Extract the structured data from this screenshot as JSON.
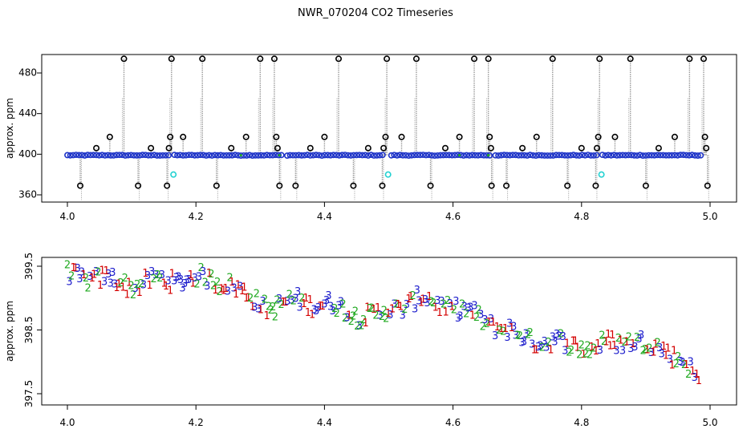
{
  "title": "NWR_070204  CO2 Timeseries",
  "colors": {
    "background": "#ffffff",
    "frame": "#000000",
    "spike_line": "#9a9a9a",
    "baseline_point": "#1f35c8",
    "outlier_point": "#000000",
    "cyan_point": "#21d1d1",
    "series_1": "#d40000",
    "series_2": "#22aa22",
    "series_3": "#1c1ccc"
  },
  "chart_data": [
    {
      "type": "scatter",
      "title": "",
      "xlabel": "",
      "ylabel": "approx. ppm",
      "xlim": [
        3.99,
        5.01
      ],
      "ylim": [
        355,
        498
      ],
      "xticks": [
        "4.0",
        "4.2",
        "4.4",
        "4.6",
        "4.8",
        "5.0"
      ],
      "yticks": [
        "360",
        "400",
        "440",
        "480"
      ],
      "baseline_ppm": 399,
      "baseline_x_range": [
        4.0,
        4.99
      ],
      "baseline_gaps": [
        4.163,
        4.337,
        4.497,
        4.662,
        4.828
      ],
      "outliers": {
        "x": [
          4.02,
          4.045,
          4.066,
          4.088,
          4.11,
          4.13,
          4.155,
          4.158,
          4.16,
          4.162,
          4.18,
          4.21,
          4.232,
          4.255,
          4.278,
          4.3,
          4.322,
          4.325,
          4.327,
          4.33,
          4.355,
          4.378,
          4.4,
          4.422,
          4.445,
          4.468,
          4.49,
          4.492,
          4.495,
          4.497,
          4.52,
          4.543,
          4.565,
          4.588,
          4.61,
          4.633,
          4.655,
          4.657,
          4.659,
          4.66,
          4.683,
          4.708,
          4.73,
          4.755,
          4.778,
          4.8,
          4.822,
          4.824,
          4.826,
          4.828,
          4.852,
          4.876,
          4.9,
          4.92,
          4.945,
          4.968,
          4.99,
          4.992,
          4.994,
          4.996
        ],
        "y": [
          369,
          406,
          417,
          494,
          369,
          406,
          369,
          406,
          417,
          494,
          417,
          494,
          369,
          406,
          417,
          494,
          494,
          417,
          406,
          369,
          369,
          406,
          417,
          494,
          369,
          406,
          369,
          406,
          417,
          494,
          417,
          494,
          369,
          406,
          417,
          494,
          494,
          417,
          406,
          369,
          369,
          406,
          417,
          494,
          369,
          406,
          369,
          406,
          417,
          494,
          417,
          494,
          369,
          406,
          417,
          494,
          494,
          417,
          406,
          369
        ]
      },
      "cyan_points": {
        "x": [
          4.165,
          4.499,
          4.831
        ],
        "y": [
          380,
          380,
          380
        ]
      }
    },
    {
      "type": "scatter",
      "title": "",
      "xlabel": "",
      "ylabel": "approx. ppm",
      "xlim": [
        3.99,
        5.01
      ],
      "ylim": [
        397.35,
        399.65
      ],
      "xticks": [
        "4.0",
        "4.2",
        "4.4",
        "4.6",
        "4.8",
        "5.0"
      ],
      "yticks": [
        "397.5",
        "398.5",
        "399.5"
      ],
      "marker_labels": [
        "1",
        "2",
        "3"
      ],
      "trend": {
        "x": [
          4.0,
          4.05,
          4.1,
          4.15,
          4.2,
          4.25,
          4.28,
          4.32,
          4.36,
          4.4,
          4.45,
          4.48,
          4.5,
          4.55,
          4.6,
          4.65,
          4.7,
          4.75,
          4.8,
          4.82,
          4.85,
          4.88,
          4.9,
          4.93,
          4.96,
          4.975,
          4.985
        ],
        "y": [
          399.35,
          399.3,
          399.2,
          399.28,
          399.3,
          399.25,
          399.0,
          398.85,
          398.95,
          398.9,
          398.75,
          398.7,
          398.8,
          398.98,
          398.85,
          398.65,
          398.4,
          398.3,
          398.25,
          398.2,
          398.3,
          398.35,
          398.25,
          398.2,
          398.0,
          397.75,
          397.6
        ]
      }
    }
  ]
}
